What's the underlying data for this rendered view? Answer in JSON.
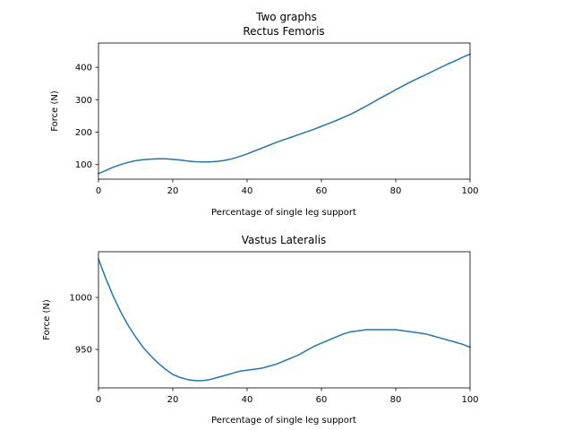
{
  "figure": {
    "suptitle": "Two graphs"
  },
  "chart_data": [
    {
      "type": "line",
      "title": "Rectus Femoris",
      "xlabel": "Percentage of single leg support",
      "ylabel": "Force (N)",
      "xlim": [
        0,
        100
      ],
      "ylim": [
        55,
        475
      ],
      "xticks": [
        0,
        20,
        40,
        60,
        80,
        100
      ],
      "yticks": [
        100,
        200,
        300,
        400
      ],
      "grid": false,
      "color": "#1f77b4",
      "x": [
        0,
        2,
        4,
        6,
        8,
        10,
        12,
        14,
        16,
        18,
        20,
        22,
        24,
        26,
        28,
        30,
        32,
        34,
        36,
        38,
        40,
        42,
        44,
        46,
        48,
        50,
        52,
        54,
        56,
        58,
        60,
        62,
        64,
        66,
        68,
        70,
        72,
        74,
        76,
        78,
        80,
        82,
        84,
        86,
        88,
        90,
        92,
        94,
        96,
        98,
        100
      ],
      "y": [
        72,
        82,
        92,
        100,
        107,
        112,
        115,
        117,
        118,
        118,
        116,
        114,
        111,
        109,
        108,
        108,
        110,
        113,
        118,
        125,
        133,
        142,
        151,
        160,
        169,
        177,
        185,
        193,
        201,
        209,
        218,
        227,
        236,
        246,
        256,
        268,
        280,
        293,
        306,
        318,
        331,
        343,
        355,
        366,
        377,
        388,
        399,
        410,
        420,
        431,
        441
      ]
    },
    {
      "type": "line",
      "title": "Vastus Lateralis",
      "xlabel": "Percentage of single leg support",
      "ylabel": "Force (N)",
      "xlim": [
        0,
        100
      ],
      "ylim": [
        913,
        1044
      ],
      "xticks": [
        0,
        20,
        40,
        60,
        80,
        100
      ],
      "yticks": [
        950,
        1000
      ],
      "grid": false,
      "color": "#1f77b4",
      "x": [
        0,
        2,
        4,
        6,
        8,
        10,
        12,
        14,
        16,
        18,
        20,
        22,
        24,
        26,
        28,
        30,
        32,
        34,
        36,
        38,
        40,
        42,
        44,
        46,
        48,
        50,
        52,
        54,
        56,
        58,
        60,
        62,
        64,
        66,
        68,
        70,
        72,
        74,
        76,
        78,
        80,
        82,
        84,
        86,
        88,
        90,
        92,
        94,
        96,
        98,
        100
      ],
      "y": [
        1037,
        1018,
        1001,
        986,
        973,
        962,
        952,
        944,
        937,
        931,
        926,
        923,
        921,
        920,
        920,
        921,
        923,
        925,
        927,
        929,
        930,
        931,
        932,
        934,
        936,
        939,
        942,
        945,
        949,
        953,
        956,
        959,
        962,
        965,
        967,
        968,
        969,
        969,
        969,
        969,
        969,
        968,
        967,
        966,
        965,
        963,
        961,
        959,
        957,
        955,
        952
      ]
    }
  ]
}
